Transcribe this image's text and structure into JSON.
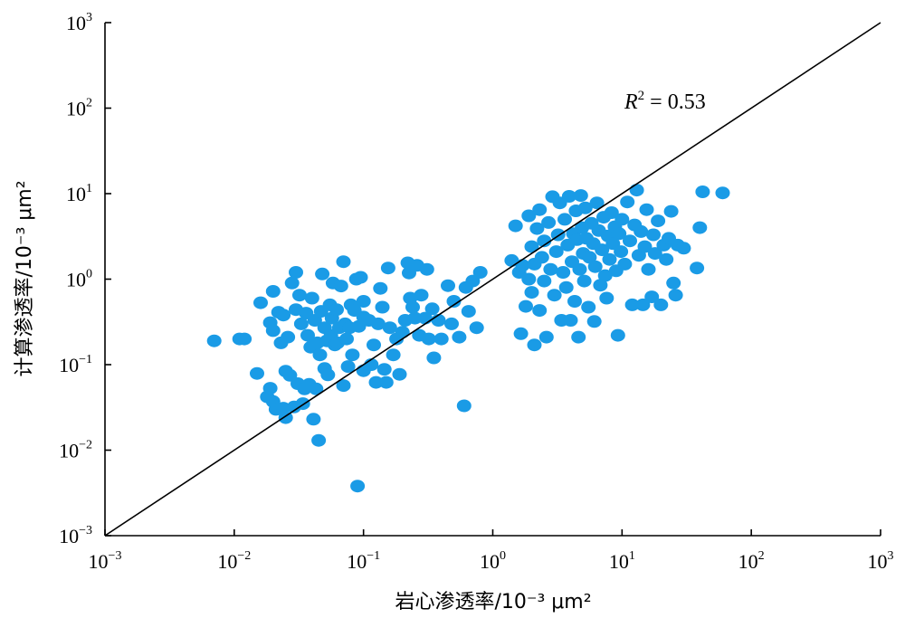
{
  "chart_data": {
    "type": "scatter",
    "xscale": "log",
    "yscale": "log",
    "xlim": [
      0.001,
      1000
    ],
    "ylim": [
      0.001,
      1000
    ],
    "xlabel": "岩心渗透率/10⁻³ μm²",
    "ylabel": "计算渗透率/10⁻³ μm²",
    "ticks": [
      {
        "base": "10",
        "exp": "−3",
        "value": 0.001
      },
      {
        "base": "10",
        "exp": "−2",
        "value": 0.01
      },
      {
        "base": "10",
        "exp": "−1",
        "value": 0.1
      },
      {
        "base": "10",
        "exp": "0",
        "value": 1
      },
      {
        "base": "10",
        "exp": "1",
        "value": 10
      },
      {
        "base": "10",
        "exp": "2",
        "value": 100
      },
      {
        "base": "10",
        "exp": "3",
        "value": 1000
      }
    ],
    "reference_line": {
      "x": [
        0.001,
        1000
      ],
      "y": [
        0.001,
        1000
      ],
      "color": "#000000"
    },
    "annotation": {
      "italic": "R",
      "exp": "2",
      "text": " = 0.53"
    },
    "marker_color": "#1a9be6",
    "points": [
      [
        0.007,
        0.19
      ],
      [
        0.011,
        0.2
      ],
      [
        0.012,
        0.2
      ],
      [
        0.015,
        0.079
      ],
      [
        0.016,
        0.53
      ],
      [
        0.018,
        0.042
      ],
      [
        0.019,
        0.053
      ],
      [
        0.019,
        0.31
      ],
      [
        0.02,
        0.037
      ],
      [
        0.02,
        0.25
      ],
      [
        0.02,
        0.72
      ],
      [
        0.021,
        0.03
      ],
      [
        0.022,
        0.41
      ],
      [
        0.023,
        0.18
      ],
      [
        0.024,
        0.031
      ],
      [
        0.024,
        0.38
      ],
      [
        0.025,
        0.024
      ],
      [
        0.025,
        0.084
      ],
      [
        0.026,
        0.21
      ],
      [
        0.027,
        0.075
      ],
      [
        0.028,
        0.9
      ],
      [
        0.029,
        0.032
      ],
      [
        0.03,
        1.2
      ],
      [
        0.03,
        0.44
      ],
      [
        0.031,
        0.06
      ],
      [
        0.032,
        0.65
      ],
      [
        0.033,
        0.3
      ],
      [
        0.034,
        0.035
      ],
      [
        0.035,
        0.052
      ],
      [
        0.036,
        0.4
      ],
      [
        0.037,
        0.22
      ],
      [
        0.038,
        0.059
      ],
      [
        0.039,
        0.16
      ],
      [
        0.04,
        0.6
      ],
      [
        0.041,
        0.023
      ],
      [
        0.042,
        0.33
      ],
      [
        0.043,
        0.052
      ],
      [
        0.044,
        0.18
      ],
      [
        0.045,
        0.013
      ],
      [
        0.046,
        0.13
      ],
      [
        0.047,
        0.42
      ],
      [
        0.048,
        1.15
      ],
      [
        0.05,
        0.27
      ],
      [
        0.05,
        0.09
      ],
      [
        0.052,
        0.19
      ],
      [
        0.053,
        0.076
      ],
      [
        0.055,
        0.5
      ],
      [
        0.056,
        0.22
      ],
      [
        0.057,
        0.35
      ],
      [
        0.058,
        0.9
      ],
      [
        0.06,
        0.17
      ],
      [
        0.062,
        0.44
      ],
      [
        0.063,
        0.18
      ],
      [
        0.065,
        0.27
      ],
      [
        0.067,
        0.83
      ],
      [
        0.07,
        1.6
      ],
      [
        0.07,
        0.057
      ],
      [
        0.072,
        0.3
      ],
      [
        0.074,
        0.2
      ],
      [
        0.076,
        0.095
      ],
      [
        0.078,
        0.27
      ],
      [
        0.08,
        0.5
      ],
      [
        0.082,
        0.13
      ],
      [
        0.085,
        0.43
      ],
      [
        0.088,
        1.0
      ],
      [
        0.09,
        0.0038
      ],
      [
        0.092,
        0.28
      ],
      [
        0.095,
        1.05
      ],
      [
        0.1,
        0.36
      ],
      [
        0.1,
        0.55
      ],
      [
        0.1,
        0.085
      ],
      [
        0.11,
        0.33
      ],
      [
        0.115,
        0.1
      ],
      [
        0.12,
        0.17
      ],
      [
        0.125,
        0.062
      ],
      [
        0.13,
        0.3
      ],
      [
        0.135,
        0.78
      ],
      [
        0.14,
        0.47
      ],
      [
        0.145,
        0.088
      ],
      [
        0.15,
        0.062
      ],
      [
        0.155,
        1.35
      ],
      [
        0.16,
        0.27
      ],
      [
        0.17,
        0.13
      ],
      [
        0.18,
        0.2
      ],
      [
        0.19,
        0.077
      ],
      [
        0.2,
        0.24
      ],
      [
        0.21,
        0.33
      ],
      [
        0.22,
        1.55
      ],
      [
        0.225,
        1.18
      ],
      [
        0.23,
        0.6
      ],
      [
        0.24,
        0.47
      ],
      [
        0.25,
        0.35
      ],
      [
        0.26,
        1.45
      ],
      [
        0.27,
        0.22
      ],
      [
        0.28,
        0.65
      ],
      [
        0.3,
        0.35
      ],
      [
        0.31,
        1.3
      ],
      [
        0.32,
        0.2
      ],
      [
        0.34,
        0.45
      ],
      [
        0.35,
        0.12
      ],
      [
        0.38,
        0.33
      ],
      [
        0.4,
        0.2
      ],
      [
        0.45,
        0.84
      ],
      [
        0.48,
        0.3
      ],
      [
        0.5,
        0.55
      ],
      [
        0.55,
        0.21
      ],
      [
        0.6,
        0.033
      ],
      [
        0.62,
        0.8
      ],
      [
        0.65,
        0.42
      ],
      [
        0.7,
        0.95
      ],
      [
        0.75,
        0.27
      ],
      [
        0.8,
        1.2
      ],
      [
        1.4,
        1.65
      ],
      [
        1.5,
        4.2
      ],
      [
        1.6,
        1.2
      ],
      [
        1.65,
        0.23
      ],
      [
        1.7,
        1.45
      ],
      [
        1.8,
        0.48
      ],
      [
        1.9,
        1.0
      ],
      [
        1.9,
        5.5
      ],
      [
        2.0,
        2.4
      ],
      [
        2.0,
        0.7
      ],
      [
        2.1,
        1.5
      ],
      [
        2.1,
        0.17
      ],
      [
        2.2,
        3.9
      ],
      [
        2.3,
        6.5
      ],
      [
        2.3,
        0.43
      ],
      [
        2.4,
        1.8
      ],
      [
        2.5,
        0.95
      ],
      [
        2.5,
        2.8
      ],
      [
        2.6,
        0.21
      ],
      [
        2.7,
        4.6
      ],
      [
        2.8,
        1.3
      ],
      [
        2.9,
        9.2
      ],
      [
        3.0,
        0.65
      ],
      [
        3.1,
        2.1
      ],
      [
        3.2,
        3.3
      ],
      [
        3.3,
        7.8
      ],
      [
        3.4,
        0.33
      ],
      [
        3.5,
        1.2
      ],
      [
        3.6,
        5.0
      ],
      [
        3.7,
        0.8
      ],
      [
        3.8,
        2.5
      ],
      [
        3.9,
        9.3
      ],
      [
        4.0,
        0.33
      ],
      [
        4.1,
        1.6
      ],
      [
        4.2,
        3.4
      ],
      [
        4.3,
        0.55
      ],
      [
        4.4,
        6.3
      ],
      [
        4.5,
        2.9
      ],
      [
        4.6,
        0.21
      ],
      [
        4.7,
        1.3
      ],
      [
        4.8,
        9.5
      ],
      [
        4.9,
        4.0
      ],
      [
        5.0,
        2.0
      ],
      [
        5.1,
        0.95
      ],
      [
        5.2,
        6.8
      ],
      [
        5.3,
        3.0
      ],
      [
        5.5,
        0.47
      ],
      [
        5.6,
        1.8
      ],
      [
        5.8,
        4.5
      ],
      [
        6.0,
        2.6
      ],
      [
        6.1,
        0.32
      ],
      [
        6.2,
        1.4
      ],
      [
        6.4,
        7.8
      ],
      [
        6.6,
        3.7
      ],
      [
        6.8,
        0.85
      ],
      [
        7.0,
        2.2
      ],
      [
        7.2,
        5.3
      ],
      [
        7.4,
        1.1
      ],
      [
        7.6,
        0.6
      ],
      [
        7.8,
        3.2
      ],
      [
        8.0,
        1.7
      ],
      [
        8.3,
        6.0
      ],
      [
        8.5,
        2.6
      ],
      [
        8.8,
        4.1
      ],
      [
        9.0,
        1.25
      ],
      [
        9.3,
        0.22
      ],
      [
        9.5,
        3.4
      ],
      [
        9.8,
        2.1
      ],
      [
        10.0,
        5.0
      ],
      [
        10.5,
        1.5
      ],
      [
        11.0,
        8.0
      ],
      [
        11.5,
        2.8
      ],
      [
        12.0,
        0.5
      ],
      [
        12.5,
        4.3
      ],
      [
        13.0,
        11.0
      ],
      [
        13.5,
        1.9
      ],
      [
        14.0,
        3.6
      ],
      [
        14.5,
        0.5
      ],
      [
        15.0,
        2.4
      ],
      [
        15.5,
        6.5
      ],
      [
        16.0,
        1.3
      ],
      [
        17.0,
        0.62
      ],
      [
        17.5,
        3.3
      ],
      [
        18.0,
        2.0
      ],
      [
        19.0,
        4.8
      ],
      [
        20.0,
        0.5
      ],
      [
        21.0,
        2.5
      ],
      [
        22.0,
        1.7
      ],
      [
        23.0,
        3.0
      ],
      [
        24.0,
        6.2
      ],
      [
        25.0,
        0.9
      ],
      [
        26.0,
        0.65
      ],
      [
        27.0,
        2.5
      ],
      [
        30.0,
        2.3
      ],
      [
        38.0,
        1.35
      ],
      [
        40.0,
        4.0
      ],
      [
        42.0,
        10.5
      ],
      [
        60.0,
        10.2
      ]
    ]
  }
}
